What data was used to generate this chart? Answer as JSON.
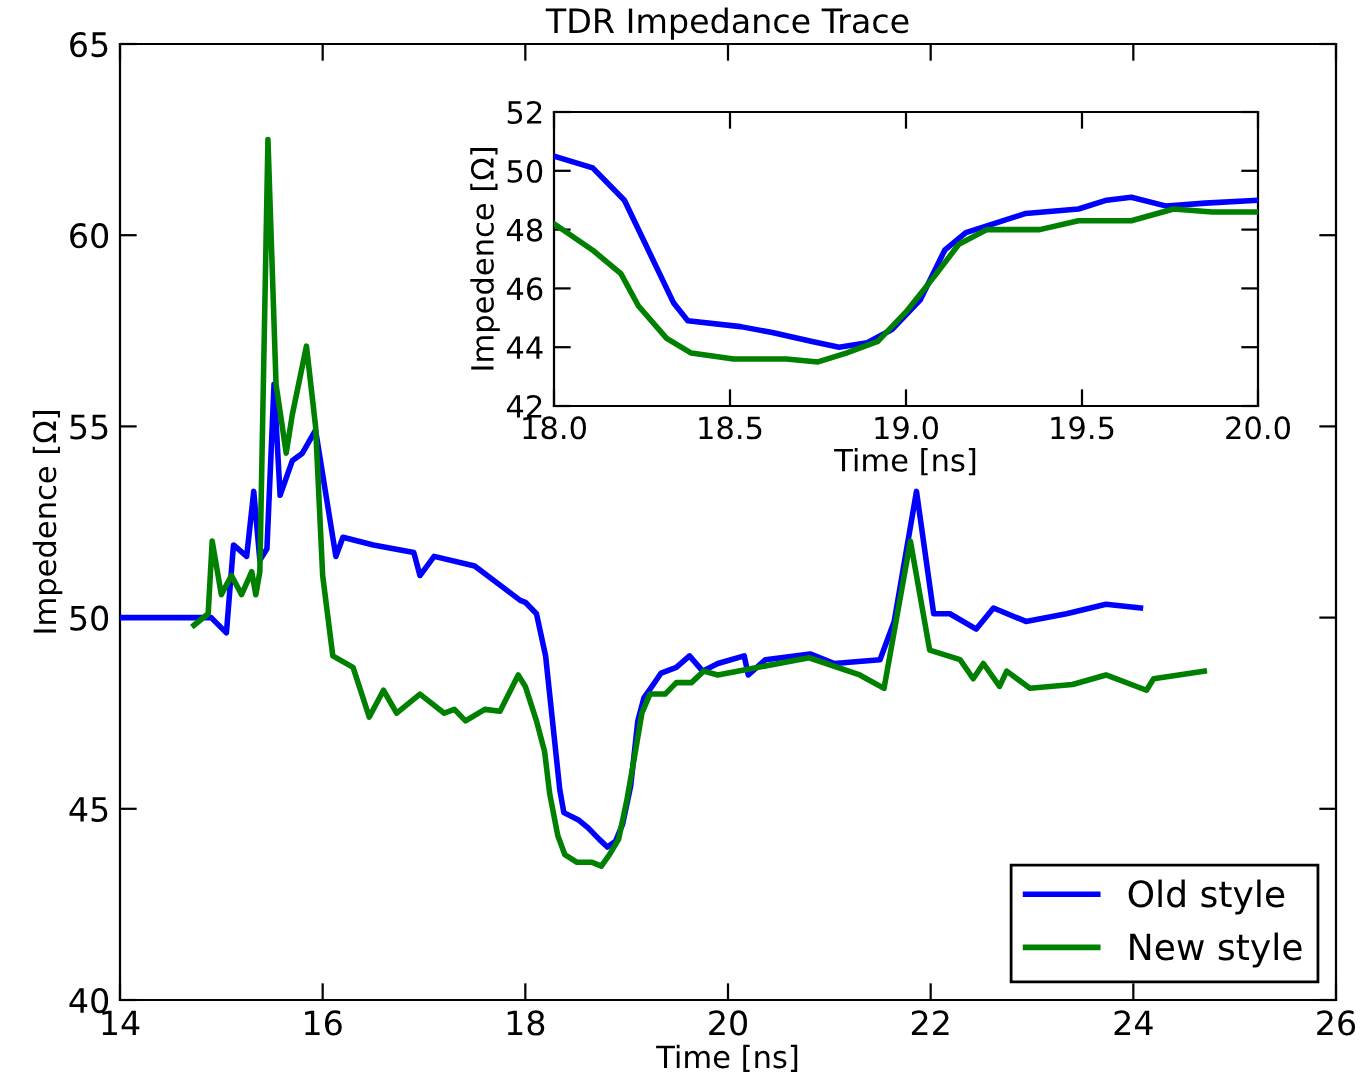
{
  "chart_data": [
    {
      "type": "line",
      "title": "TDR Impedance Trace",
      "xlabel": "Time [ns]",
      "ylabel": "Impedence [Ω]",
      "xlim": [
        14,
        26
      ],
      "ylim": [
        40,
        65
      ],
      "xticks": [
        14,
        16,
        18,
        20,
        22,
        24,
        26
      ],
      "yticks": [
        40,
        45,
        50,
        55,
        60,
        65
      ],
      "legend": "bottom right",
      "grid": false,
      "marker": "none",
      "line_style": "solid",
      "series": [
        {
          "name": "Old style",
          "color": "#0000ff",
          "x": [
            14.0,
            14.5,
            14.9,
            15.05,
            15.12,
            15.25,
            15.32,
            15.38,
            15.45,
            15.52,
            15.58,
            15.7,
            15.8,
            15.93,
            16.13,
            16.2,
            16.5,
            16.9,
            16.96,
            17.1,
            17.5,
            17.95,
            18.0,
            18.11,
            18.2,
            18.26,
            18.34,
            18.38,
            18.53,
            18.62,
            18.73,
            18.81,
            18.89,
            18.96,
            19.04,
            19.11,
            19.17,
            19.25,
            19.34,
            19.49,
            19.62,
            19.75,
            19.9,
            20.16,
            20.2,
            20.37,
            20.81,
            21.05,
            21.5,
            21.64,
            21.86,
            22.03,
            22.19,
            22.45,
            22.62,
            22.94,
            23.34,
            23.73,
            24.07
          ],
          "values": [
            50.0,
            50.0,
            50.0,
            49.6,
            51.9,
            51.6,
            53.3,
            51.5,
            51.8,
            56.1,
            53.2,
            54.1,
            54.3,
            54.9,
            51.6,
            52.1,
            51.9,
            51.7,
            51.1,
            51.6,
            51.35,
            50.45,
            50.4,
            50.1,
            49.0,
            47.5,
            45.5,
            44.9,
            44.7,
            44.5,
            44.2,
            44.0,
            44.15,
            44.6,
            45.6,
            47.3,
            47.9,
            48.2,
            48.55,
            48.7,
            49.0,
            48.6,
            48.8,
            49.0,
            48.5,
            48.9,
            49.05,
            48.8,
            48.9,
            49.9,
            53.3,
            50.1,
            50.1,
            49.7,
            50.25,
            49.9,
            50.1,
            50.35,
            50.25
          ]
        },
        {
          "name": "New style",
          "color": "#008000",
          "x": [
            14.73,
            14.87,
            14.91,
            15.0,
            15.1,
            15.2,
            15.3,
            15.34,
            15.38,
            15.46,
            15.54,
            15.64,
            15.7,
            15.84,
            15.93,
            16.0,
            16.1,
            16.3,
            16.46,
            16.6,
            16.73,
            16.96,
            17.2,
            17.3,
            17.41,
            17.6,
            17.75,
            17.93,
            18.0,
            18.11,
            18.19,
            18.24,
            18.32,
            18.39,
            18.51,
            18.66,
            18.75,
            18.83,
            18.92,
            19.0,
            19.08,
            19.15,
            19.23,
            19.38,
            19.49,
            19.64,
            19.76,
            19.9,
            20.3,
            20.8,
            21.3,
            21.54,
            21.8,
            21.99,
            22.29,
            22.42,
            22.52,
            22.68,
            22.75,
            22.98,
            23.4,
            23.73,
            24.13,
            24.2,
            24.7
          ],
          "values": [
            49.8,
            50.1,
            52.0,
            50.6,
            51.1,
            50.6,
            51.2,
            50.6,
            51.2,
            62.5,
            56.1,
            54.3,
            55.3,
            57.1,
            55.0,
            51.1,
            49.0,
            48.7,
            47.4,
            48.1,
            47.5,
            48.0,
            47.5,
            47.6,
            47.3,
            47.6,
            47.55,
            48.5,
            48.2,
            47.3,
            46.5,
            45.4,
            44.3,
            43.8,
            43.6,
            43.6,
            43.5,
            43.8,
            44.2,
            45.2,
            46.4,
            47.5,
            48.0,
            48.0,
            48.3,
            48.3,
            48.6,
            48.5,
            48.7,
            48.95,
            48.5,
            48.15,
            52.0,
            49.15,
            48.9,
            48.4,
            48.8,
            48.2,
            48.6,
            48.15,
            48.25,
            48.5,
            48.1,
            48.4,
            48.6
          ]
        }
      ]
    },
    {
      "type": "line",
      "xlabel": "Time [ns]",
      "ylabel": "Impedence [Ω]",
      "xlim": [
        18.0,
        20.0
      ],
      "ylim": [
        42,
        52
      ],
      "xticks": [
        {
          "value": 18.0,
          "label": "18.0"
        },
        {
          "value": 18.5,
          "label": "18.5"
        },
        {
          "value": 19.0,
          "label": "19.0"
        },
        {
          "value": 19.5,
          "label": "19.5"
        },
        {
          "value": 20.0,
          "label": "20.0"
        }
      ],
      "yticks": [
        42,
        44,
        46,
        48,
        50,
        52
      ],
      "grid": false,
      "marker": "none",
      "line_style": "solid",
      "series": [
        {
          "color": "#0000ff",
          "x": [
            18.0,
            18.11,
            18.2,
            18.26,
            18.34,
            18.38,
            18.53,
            18.62,
            18.73,
            18.81,
            18.89,
            18.96,
            19.04,
            19.11,
            19.17,
            19.25,
            19.34,
            19.49,
            19.57,
            19.64,
            19.74,
            19.85,
            20.0
          ],
          "values": [
            50.5,
            50.1,
            49.0,
            47.5,
            45.5,
            44.9,
            44.7,
            44.5,
            44.2,
            44.0,
            44.15,
            44.6,
            45.6,
            47.3,
            47.9,
            48.2,
            48.55,
            48.7,
            49.0,
            49.1,
            48.8,
            48.9,
            49.0
          ]
        },
        {
          "color": "#008000",
          "x": [
            18.0,
            18.11,
            18.19,
            18.24,
            18.32,
            18.39,
            18.51,
            18.66,
            18.75,
            18.83,
            18.92,
            19.0,
            19.08,
            19.15,
            19.23,
            19.38,
            19.49,
            19.64,
            19.76,
            19.87,
            20.0
          ],
          "values": [
            48.2,
            47.3,
            46.5,
            45.4,
            44.3,
            43.8,
            43.6,
            43.6,
            43.5,
            43.8,
            44.2,
            45.2,
            46.4,
            47.5,
            48.0,
            48.0,
            48.3,
            48.3,
            48.7,
            48.6,
            48.6
          ]
        }
      ]
    }
  ]
}
